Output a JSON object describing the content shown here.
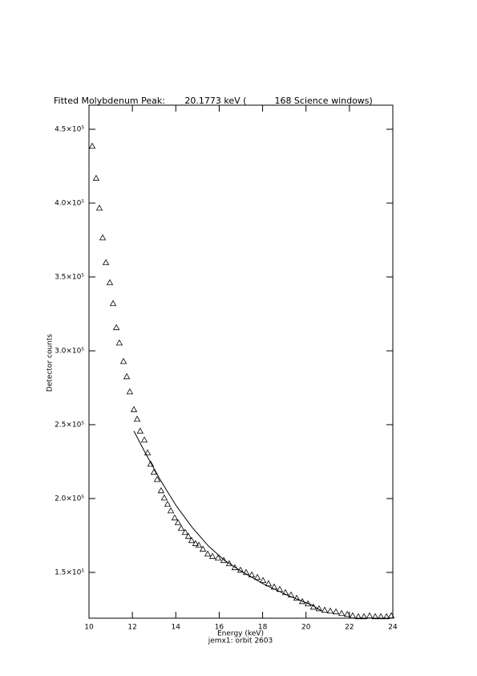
{
  "chart_data": {
    "type": "scatter",
    "title": "Fitted Molybdenum Peak:       20.1773 keV (          168 Science windows)",
    "xlabel": "Energy (keV)",
    "subtitle": "jemx1: orbit 2603",
    "ylabel": "Detector counts",
    "xlim": [
      10,
      24
    ],
    "xticks": [
      10,
      12,
      14,
      16,
      18,
      20,
      22,
      24
    ],
    "ylim": [
      119000,
      466300
    ],
    "yticks": [
      {
        "value": 150000,
        "label": "1.5×10⁵"
      },
      {
        "value": 200000,
        "label": "2.0×10⁵"
      },
      {
        "value": 250000,
        "label": "2.5×10⁵"
      },
      {
        "value": 300000,
        "label": "3.0×10⁵"
      },
      {
        "value": 350000,
        "label": "3.5×10⁵"
      },
      {
        "value": 400000,
        "label": "4.0×10⁵"
      },
      {
        "value": 450000,
        "label": "4.5×10⁵"
      }
    ],
    "color": "#000000",
    "points": {
      "marker": "triangle",
      "x": [
        10.15,
        10.33,
        10.48,
        10.63,
        10.78,
        10.96,
        11.11,
        11.26,
        11.4,
        11.59,
        11.74,
        11.88,
        12.07,
        12.22,
        12.36,
        12.55,
        12.7,
        12.84,
        12.99,
        13.14,
        13.32,
        13.47,
        13.62,
        13.77,
        13.95,
        14.1,
        14.25,
        14.43,
        14.58,
        14.73,
        14.91,
        15.06,
        15.25,
        15.47,
        15.69,
        15.95,
        16.21,
        16.46,
        16.72,
        16.98,
        17.24,
        17.5,
        17.76,
        18.02,
        18.27,
        18.53,
        18.79,
        19.05,
        19.31,
        19.57,
        19.83,
        20.09,
        20.34,
        20.6,
        20.86,
        21.12,
        21.38,
        21.64,
        21.9,
        22.15,
        22.41,
        22.67,
        22.93,
        23.19,
        23.45,
        23.71,
        23.93
      ],
      "values": [
        438600,
        416900,
        396700,
        376600,
        359800,
        346200,
        332100,
        315800,
        305400,
        292900,
        282600,
        272300,
        260300,
        253800,
        245700,
        239700,
        231000,
        223400,
        217900,
        213000,
        205400,
        200500,
        196200,
        191800,
        187000,
        183700,
        179900,
        177200,
        174500,
        171700,
        169600,
        168500,
        165800,
        162500,
        160900,
        159800,
        158200,
        156000,
        153300,
        151600,
        150000,
        148400,
        146700,
        144600,
        142400,
        140200,
        138600,
        136400,
        134800,
        132600,
        130400,
        128800,
        126600,
        125500,
        124500,
        123900,
        123400,
        122300,
        121700,
        120700,
        120100,
        120100,
        120700,
        120100,
        120100,
        120100,
        120700
      ]
    },
    "fit": {
      "x": [
        12.07,
        12.55,
        13.29,
        14.02,
        14.76,
        15.5,
        16.24,
        16.98,
        18.09,
        19.2,
        20.3,
        20.7
      ],
      "values": [
        245700,
        232100,
        212500,
        195100,
        180400,
        167900,
        158200,
        151100,
        141800,
        134200,
        127700,
        124000
      ]
    }
  }
}
